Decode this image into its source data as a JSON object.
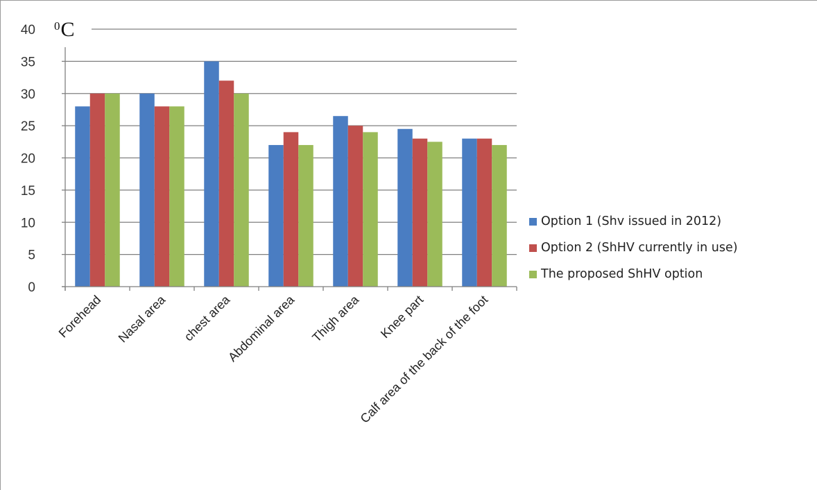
{
  "chart_data": {
    "type": "bar",
    "title": "",
    "unit_label_base": "C",
    "unit_label_sup": "0",
    "xlabel": "",
    "ylabel": "",
    "ylim": [
      0,
      40
    ],
    "yticks": [
      0,
      5,
      10,
      15,
      20,
      25,
      30,
      35,
      40
    ],
    "grid": true,
    "legend_position": "right",
    "categories": [
      "Forehead",
      "Nasal area",
      "chest area",
      "Abdominal area",
      "Thigh area",
      "Knee part",
      "Calf area of the back of the foot"
    ],
    "series": [
      {
        "name": "Option 1 (Shv issued in 2012)",
        "color": "#4a7dc2",
        "values": [
          28,
          30,
          35,
          22,
          26.5,
          24.5,
          23
        ]
      },
      {
        "name": "Option 2 (ShHV currently in use)",
        "color": "#c0504d",
        "values": [
          30,
          28,
          32,
          24,
          25,
          23,
          23
        ]
      },
      {
        "name": "The proposed ShHV option",
        "color": "#9bbb59",
        "values": [
          30,
          28,
          30,
          22,
          24,
          22.5,
          22
        ]
      }
    ]
  }
}
